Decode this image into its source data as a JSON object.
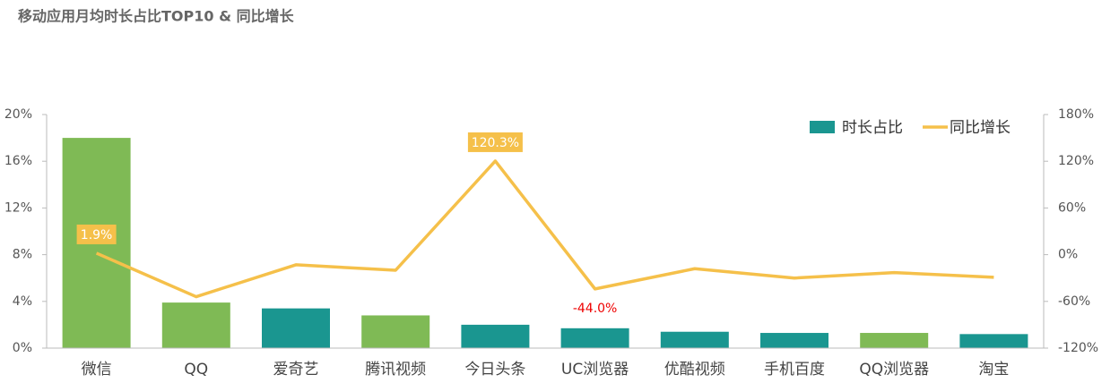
{
  "chart_data": {
    "type": "bar-line",
    "title": "移动应用月均时长占比TOP10 & 同比增长",
    "categories": [
      "微信",
      "QQ",
      "爱奇艺",
      "腾讯视频",
      "今日头条",
      "UC浏览器",
      "优酷视频",
      "手机百度",
      "QQ浏览器",
      "淘宝"
    ],
    "series": [
      {
        "name": "时长占比",
        "color": "#1a9690",
        "colors": [
          "#7fba55",
          "#7fba55",
          "#1a9690",
          "#7fba55",
          "#1a9690",
          "#1a9690",
          "#1a9690",
          "#1a9690",
          "#7fba55",
          "#1a9690"
        ],
        "values": [
          18.0,
          3.9,
          3.4,
          2.8,
          2.0,
          1.7,
          1.4,
          1.3,
          1.3,
          1.2
        ]
      },
      {
        "name": "同比增长",
        "color": "#f5c04a",
        "axis": "y2",
        "values": [
          1.9,
          -54,
          -13,
          -20,
          120.3,
          -44.0,
          -18,
          -30,
          -23,
          -29
        ],
        "value_labels": [
          "1.9%",
          null,
          null,
          null,
          "120.3%",
          "-44.0%",
          null,
          null,
          null,
          null
        ]
      }
    ],
    "ylim": [
      0,
      20
    ],
    "yticks": [
      {
        "value": 0,
        "label": "0%"
      },
      {
        "value": 4,
        "label": "4%"
      },
      {
        "value": 8,
        "label": "8%"
      },
      {
        "value": 12,
        "label": "12%"
      },
      {
        "value": 16,
        "label": "16%"
      },
      {
        "value": 20,
        "label": "20%"
      }
    ],
    "y2lim": [
      -120,
      180
    ],
    "y2ticks": [
      {
        "value": -120,
        "label": "-120%"
      },
      {
        "value": -60,
        "label": "-60%"
      },
      {
        "value": 0,
        "label": "0%"
      },
      {
        "value": 60,
        "label": "60%"
      },
      {
        "value": 120,
        "label": "120%"
      },
      {
        "value": 180,
        "label": "180%"
      }
    ],
    "legend": "top-right"
  }
}
